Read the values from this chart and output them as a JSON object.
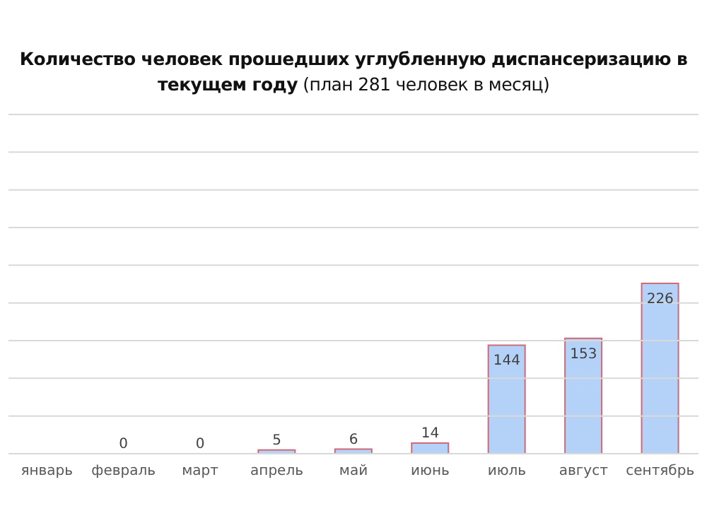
{
  "chart_data": {
    "type": "bar",
    "title": "Количество человек прошедших углубленную диспансеризацию в текущем году",
    "subtitle": "(план 281 человек в месяц)",
    "categories": [
      "январь",
      "февраль",
      "март",
      "апрель",
      "май",
      "июнь",
      "июль",
      "август",
      "сентябрь"
    ],
    "series": [
      {
        "color": "#b4d2f7",
        "values": [
          null,
          0,
          0,
          5,
          6,
          14,
          144,
          153,
          226
        ]
      }
    ],
    "ylim": [
      0,
      450
    ],
    "yticks": [
      {
        "value": 0,
        "label": null
      },
      {
        "value": 50,
        "label": null
      },
      {
        "value": 100,
        "label": null
      },
      {
        "value": 150,
        "label": null
      },
      {
        "value": 200,
        "label": null
      },
      {
        "value": 250,
        "label": null
      },
      {
        "value": 300,
        "label": null
      },
      {
        "value": 350,
        "label": null
      },
      {
        "value": 400,
        "label": null
      },
      {
        "value": 450,
        "label": null
      }
    ],
    "grid": "y",
    "legend": false,
    "data_labels": true,
    "tick_labels": "x"
  }
}
